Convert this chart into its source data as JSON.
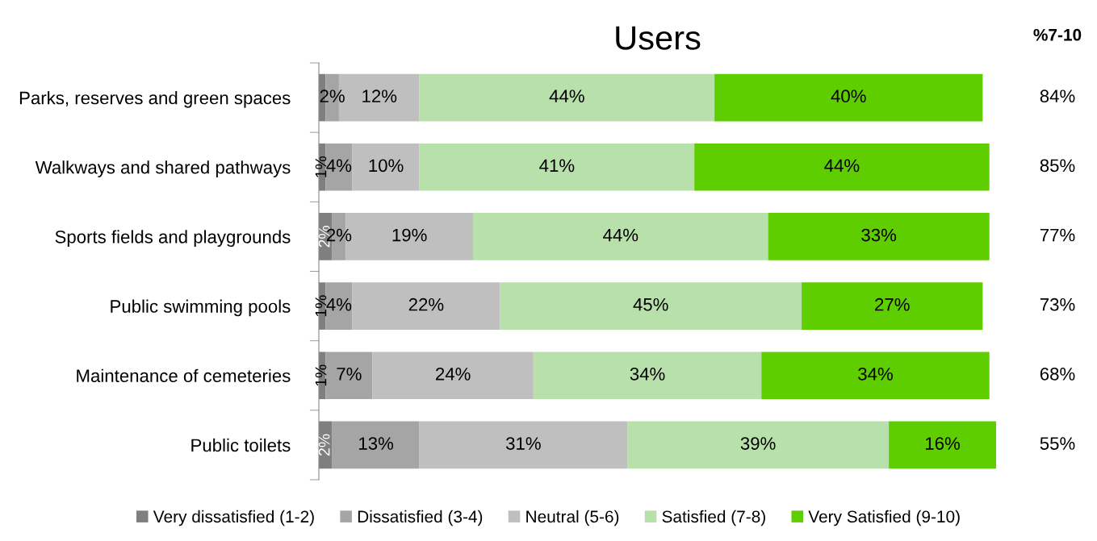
{
  "chart_data": {
    "type": "bar",
    "orientation": "horizontal",
    "stacked": true,
    "title": "Users",
    "categories": [
      "Parks, reserves and green spaces",
      "Walkways and shared pathways",
      "Sports fields and playgrounds",
      "Public swimming pools",
      "Maintenance of cemeteries",
      "Public toilets"
    ],
    "series": [
      {
        "name": "Very dissatisfied (1-2)",
        "color": "#7f7f7f",
        "values": [
          1,
          1,
          2,
          1,
          1,
          2
        ],
        "value_labels": [
          null,
          "1%",
          "2%",
          "1%",
          "1%",
          "2%"
        ]
      },
      {
        "name": "Dissatisfied (3-4)",
        "color": "#a5a5a5",
        "values": [
          2,
          4,
          2,
          4,
          7,
          13
        ],
        "value_labels": [
          "2%",
          "4%",
          "2%",
          "4%",
          "7%",
          "13%"
        ]
      },
      {
        "name": "Neutral (5-6)",
        "color": "#bfbfbf",
        "values": [
          12,
          10,
          19,
          22,
          24,
          31
        ],
        "value_labels": [
          "12%",
          "10%",
          "19%",
          "22%",
          "24%",
          "31%"
        ]
      },
      {
        "name": "Satisfied (7-8)",
        "color": "#b8e0aa",
        "values": [
          44,
          41,
          44,
          45,
          34,
          39
        ],
        "value_labels": [
          "44%",
          "41%",
          "44%",
          "45%",
          "34%",
          "39%"
        ]
      },
      {
        "name": "Very Satisfied (9-10)",
        "color": "#5ece00",
        "values": [
          40,
          44,
          33,
          27,
          34,
          16
        ],
        "value_labels": [
          "40%",
          "44%",
          "33%",
          "27%",
          "34%",
          "16%"
        ]
      }
    ],
    "annotations": [
      "%7-10",
      "84%",
      "85%",
      "77%",
      "73%",
      "68%",
      "55%"
    ],
    "legend": "bottom",
    "grid": false,
    "tick_labels": "y"
  }
}
